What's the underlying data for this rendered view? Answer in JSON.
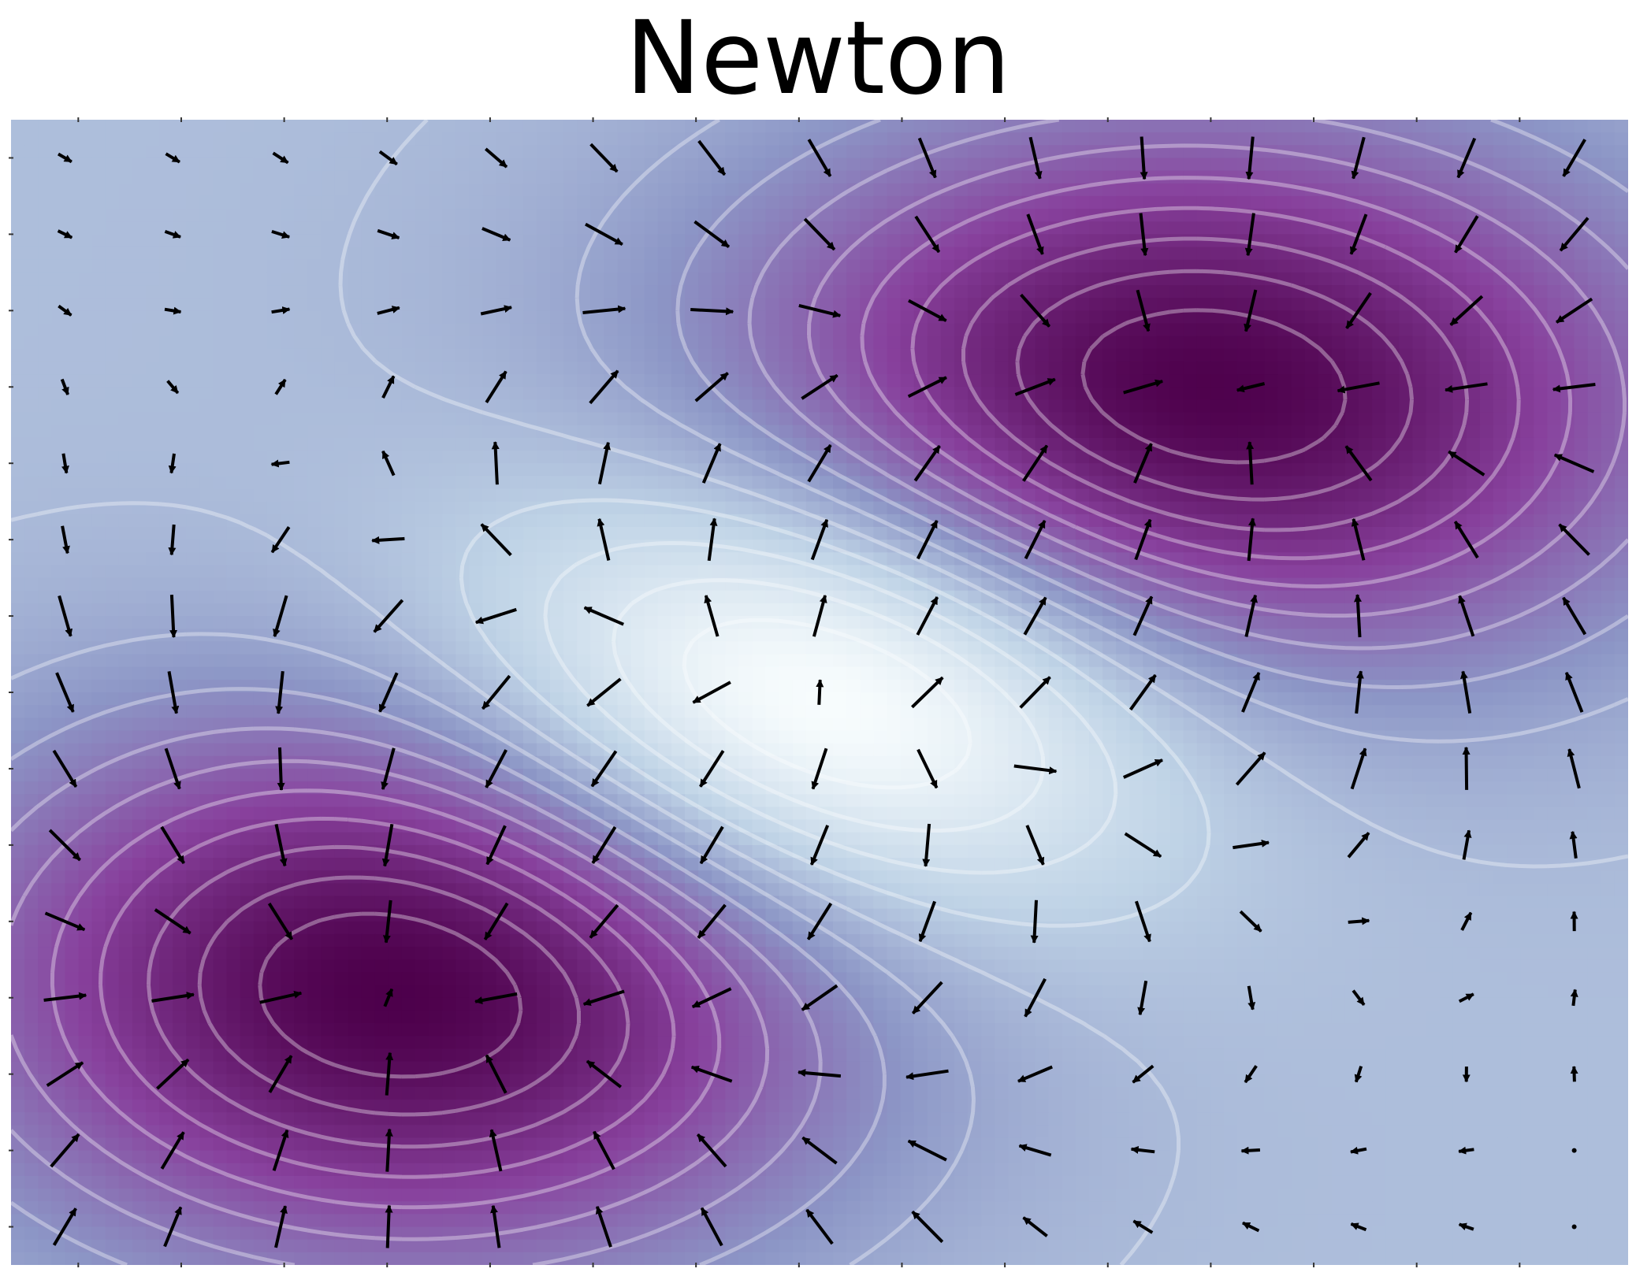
{
  "chart_data": {
    "type": "quiver",
    "title": "Newton",
    "colormap": "BuPu",
    "xlabel": "",
    "ylabel": "",
    "xlim": [
      -4,
      4
    ],
    "ylim": [
      -3,
      3
    ],
    "axes_visible": false,
    "grid": false,
    "contour_lines": true,
    "contour_color": "#ffffff",
    "arrow_color": "#000000",
    "field": {
      "kind": "sum_of_gaussians",
      "bumps": [
        {
          "cx": -2.0,
          "cy": -1.5,
          "amplitude": 1.0,
          "sx": 1.5,
          "sy": 1.0
        },
        {
          "cx": 1.8,
          "cy": 1.5,
          "amplitude": 1.0,
          "sx": 1.6,
          "sy": 1.0
        },
        {
          "cx": 0.0,
          "cy": 0.0,
          "amplitude": -0.75,
          "sx": 1.3,
          "sy": 0.9
        }
      ],
      "offset": 0.85
    },
    "arrow_grid": {
      "nx": 15,
      "ny": 15
    },
    "critical_points": [
      {
        "type": "maximum",
        "x": -2.0,
        "y": -1.5
      },
      {
        "type": "maximum",
        "x": 1.8,
        "y": 1.5
      },
      {
        "type": "minimum",
        "x": 0.0,
        "y": 0.0
      },
      {
        "type": "saddle",
        "x": -1.9,
        "y": 1.2
      },
      {
        "type": "saddle",
        "x": 1.8,
        "y": -1.2
      }
    ]
  }
}
